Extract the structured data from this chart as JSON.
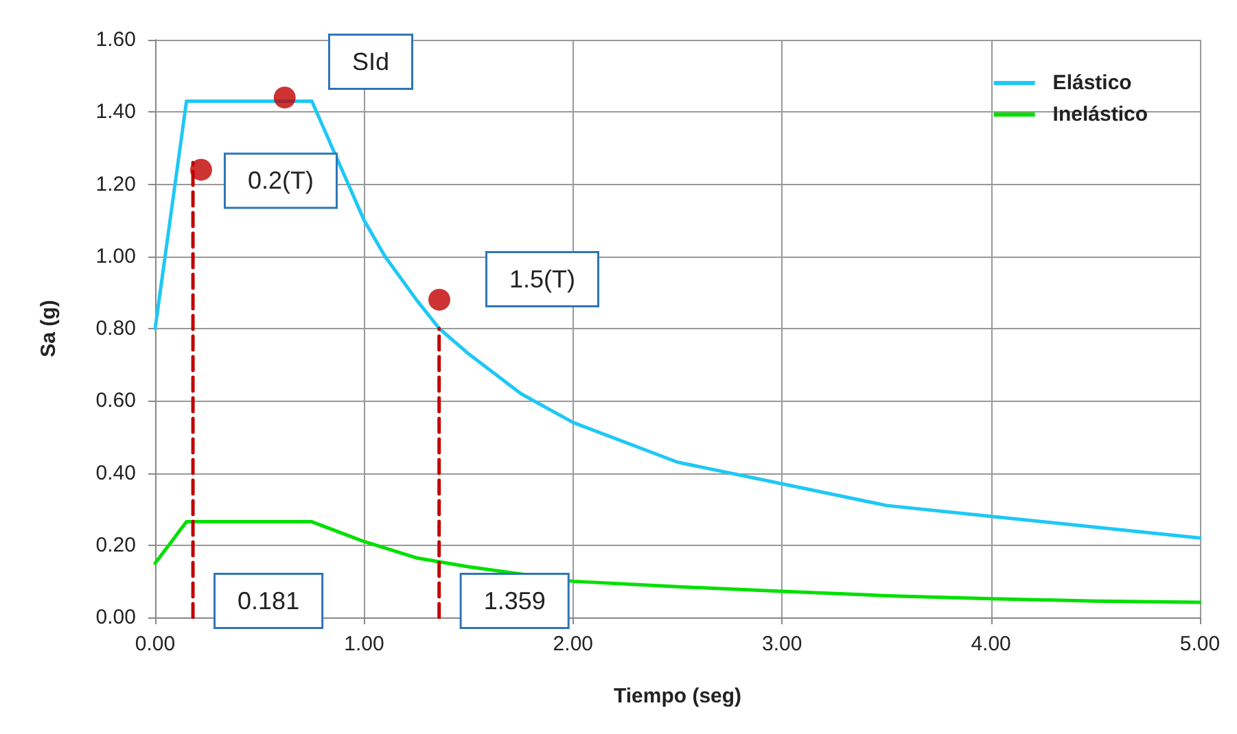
{
  "chart_data": {
    "type": "line",
    "xlabel": "Tiempo (seg)",
    "ylabel": "Sa (g)",
    "xlim": [
      0,
      5
    ],
    "xticks": [
      {
        "value": 0,
        "label": "0.00"
      },
      {
        "value": 1,
        "label": "1.00"
      },
      {
        "value": 2,
        "label": "2.00"
      },
      {
        "value": 3,
        "label": "3.00"
      },
      {
        "value": 4,
        "label": "4.00"
      },
      {
        "value": 5,
        "label": "5.00"
      }
    ],
    "ylim": [
      0,
      1.6
    ],
    "yticks": [
      {
        "value": 0,
        "label": "0.00"
      },
      {
        "value": 0.2,
        "label": "0.20"
      },
      {
        "value": 0.4,
        "label": "0.40"
      },
      {
        "value": 0.6,
        "label": "0.60"
      },
      {
        "value": 0.8,
        "label": "0.80"
      },
      {
        "value": 1,
        "label": "1.00"
      },
      {
        "value": 1.2,
        "label": "1.20"
      },
      {
        "value": 1.4,
        "label": "1.40"
      },
      {
        "value": 1.6,
        "label": "1.60"
      }
    ],
    "grid": true,
    "legend": "top right",
    "marker": "none",
    "line_style": "solid",
    "series": [
      {
        "name": "Elástico",
        "color": "#1ec8f5",
        "x": [
          0,
          0.15,
          0.75,
          1,
          1.1,
          1.25,
          1.36,
          1.5,
          1.75,
          2,
          2.5,
          3,
          3.5,
          4,
          4.5,
          5
        ],
        "values": [
          0.8,
          1.43,
          1.43,
          1.1,
          1.0,
          0.88,
          0.8,
          0.73,
          0.62,
          0.54,
          0.43,
          0.37,
          0.31,
          0.28,
          0.25,
          0.22
        ]
      },
      {
        "name": "Inelástico",
        "color": "#00e000",
        "x": [
          0,
          0.15,
          0.75,
          1,
          1.25,
          1.5,
          2,
          2.5,
          3,
          3.5,
          4,
          4.5,
          5
        ],
        "values": [
          0.15,
          0.265,
          0.265,
          0.21,
          0.165,
          0.14,
          0.1,
          0.085,
          0.072,
          0.06,
          0.052,
          0.045,
          0.042
        ]
      },
      {
        "color": "#c00000",
        "line_style": "dashed",
        "x": [
          0.181,
          0.181
        ],
        "values": [
          0,
          1.26
        ]
      },
      {
        "color": "#c00000",
        "line_style": "dashed",
        "x": [
          1.359,
          1.359
        ],
        "values": [
          0,
          0.8
        ]
      },
      {
        "type": "scatter",
        "marker": "circle",
        "color": "#c00000",
        "x": [
          0.22,
          0.62,
          1.36
        ],
        "values": [
          1.24,
          1.44,
          0.88
        ]
      }
    ],
    "annotations": [
      "SId",
      {
        "text": "0.2(T)",
        "x": 0.22,
        "y": 1.24
      },
      {
        "text": "1.5(T)",
        "x": 1.36,
        "y": 0.88
      },
      {
        "text": "0.181",
        "x": 0.181,
        "y": 0
      },
      {
        "text": "1.359",
        "x": 1.359,
        "y": 0
      }
    ]
  }
}
